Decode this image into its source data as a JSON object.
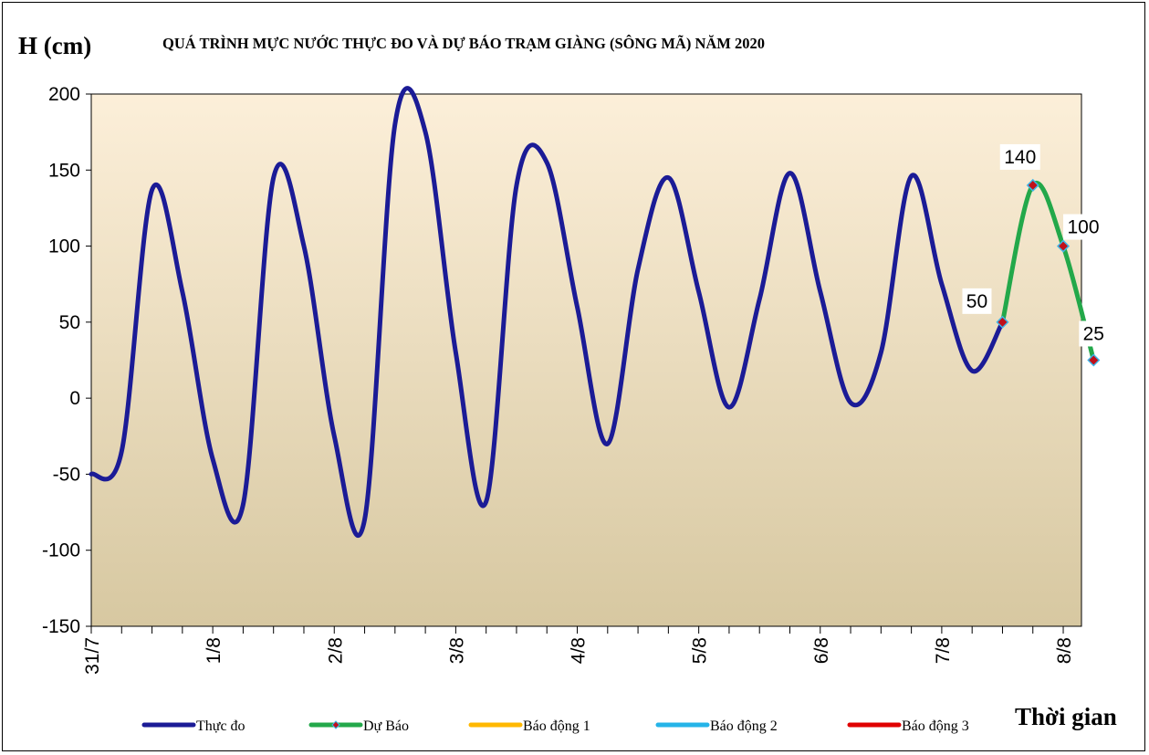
{
  "chart_data": {
    "type": "line",
    "title": "QUÁ TRÌNH  MỰC NƯỚC THỰC ĐO VÀ DỰ BÁO TRẠM GIÀNG (SÔNG MÃ) NĂM 2020",
    "ylabel": "H (cm)",
    "xlabel": "Thời gian",
    "ylim": [
      -150,
      200
    ],
    "yticks": [
      -150,
      -100,
      -50,
      0,
      50,
      100,
      150,
      200
    ],
    "xlim": [
      0,
      8.15
    ],
    "xticks": [
      {
        "x": 0,
        "label": "31/7"
      },
      {
        "x": 1,
        "label": "1/8"
      },
      {
        "x": 2,
        "label": "2/8"
      },
      {
        "x": 3,
        "label": "3/8"
      },
      {
        "x": 4,
        "label": "4/8"
      },
      {
        "x": 5,
        "label": "5/8"
      },
      {
        "x": 6,
        "label": "6/8"
      },
      {
        "x": 7,
        "label": "7/8"
      },
      {
        "x": 8,
        "label": "8/8"
      }
    ],
    "minor_tick_step": 0.25,
    "legend_position": "bottom",
    "series": [
      {
        "name": "Thực đo",
        "color": "#1B1B96",
        "points": [
          [
            0,
            -50
          ],
          [
            0.25,
            -35
          ],
          [
            0.5,
            137
          ],
          [
            0.75,
            70
          ],
          [
            1,
            -40
          ],
          [
            1.25,
            -70
          ],
          [
            1.5,
            145
          ],
          [
            1.75,
            100
          ],
          [
            2,
            -25
          ],
          [
            2.25,
            -80
          ],
          [
            2.5,
            180
          ],
          [
            2.75,
            175
          ],
          [
            3,
            30
          ],
          [
            3.25,
            -68
          ],
          [
            3.5,
            140
          ],
          [
            3.75,
            155
          ],
          [
            4,
            60
          ],
          [
            4.25,
            -30
          ],
          [
            4.5,
            85
          ],
          [
            4.75,
            145
          ],
          [
            5,
            70
          ],
          [
            5.25,
            -6
          ],
          [
            5.5,
            65
          ],
          [
            5.75,
            148
          ],
          [
            6,
            70
          ],
          [
            6.25,
            -3
          ],
          [
            6.5,
            30
          ],
          [
            6.75,
            146
          ],
          [
            7,
            75
          ],
          [
            7.25,
            18
          ],
          [
            7.5,
            50
          ]
        ]
      },
      {
        "name": "Dự Báo",
        "color": "#23A84A",
        "marker_fill": "#C0101A",
        "marker_stroke": "#3FB6E8",
        "points": [
          [
            7.5,
            50
          ],
          [
            7.75,
            140
          ],
          [
            8,
            100
          ],
          [
            8.25,
            25
          ]
        ],
        "labels": [
          "50",
          "140",
          "100",
          "25"
        ]
      },
      {
        "name": "Báo động 1",
        "color": "#FFB800",
        "points": []
      },
      {
        "name": "Báo động 2",
        "color": "#25B4E8",
        "points": []
      },
      {
        "name": "Báo động 3",
        "color": "#E00000",
        "points": []
      }
    ],
    "plot_background": {
      "top": "#FCEFD9",
      "bottom": "#D7C8A1"
    }
  }
}
